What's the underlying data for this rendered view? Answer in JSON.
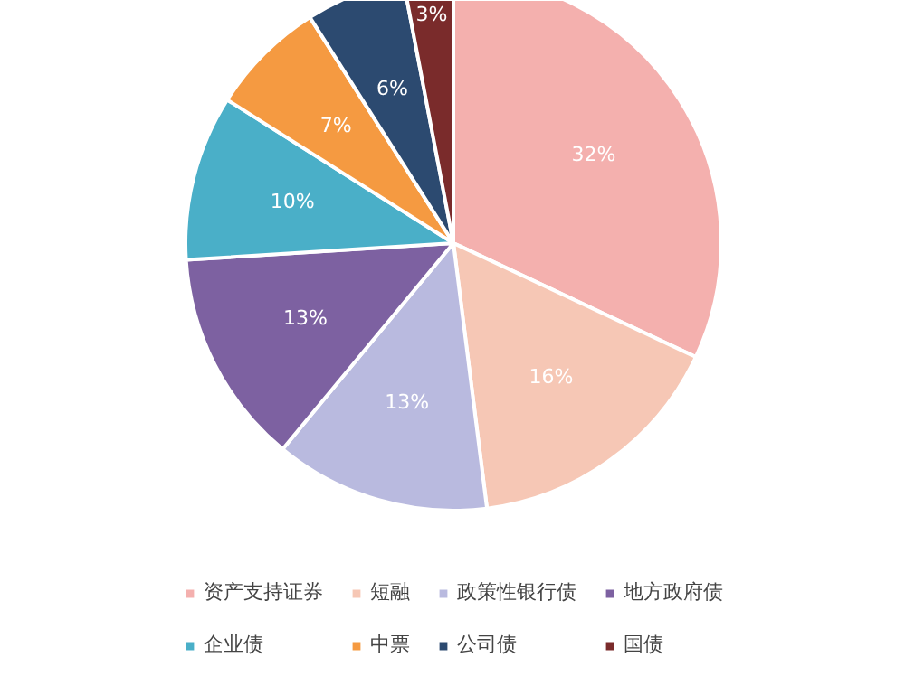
{
  "chart_data": {
    "type": "pie",
    "categories": [
      "资产支持证券",
      "短融",
      "政策性银行债",
      "地方政府债",
      "企业债",
      "中票",
      "公司债",
      "国债"
    ],
    "values": [
      32,
      16,
      13,
      13,
      10,
      7,
      6,
      3
    ],
    "colors": [
      "#f4b0ae",
      "#f6c7b5",
      "#b9badf",
      "#7d61a1",
      "#4aafc8",
      "#f59a41",
      "#2c4a70",
      "#7a2b2b"
    ],
    "value_labels": [
      "32%",
      "16%",
      "13%",
      "13%",
      "10%",
      "7%",
      "6%",
      "3%"
    ],
    "legend": "bottom"
  }
}
